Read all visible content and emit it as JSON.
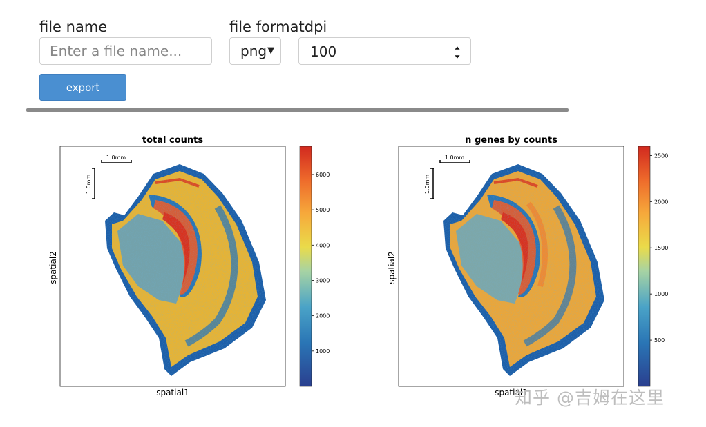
{
  "controls": {
    "file_name_label": "file name",
    "file_name_placeholder": "Enter a file name...",
    "file_format_label": "file format",
    "dpi_label": "dpi",
    "format_value": "png",
    "dpi_value": "100",
    "export_label": "export"
  },
  "watermark": "知乎 @吉姆在这里",
  "chart_data": [
    {
      "type": "heatmap",
      "title": "total counts",
      "xlabel": "spatial1",
      "ylabel": "spatial2",
      "scalebar_h": "1.0mm",
      "scalebar_v": "1.0mm",
      "colorbar": {
        "min": 0,
        "max": 6800,
        "ticks": [
          1000,
          2000,
          3000,
          4000,
          5000,
          6000
        ],
        "colormap": "spectral-reversed"
      }
    },
    {
      "type": "heatmap",
      "title": "n genes by counts",
      "xlabel": "spatial1",
      "ylabel": "spatial2",
      "scalebar_h": "1.0mm",
      "scalebar_v": "1.0mm",
      "colorbar": {
        "min": 0,
        "max": 2600,
        "ticks": [
          500,
          1000,
          1500,
          2000,
          2500
        ],
        "colormap": "spectral-reversed"
      }
    }
  ],
  "colors": {
    "button": "#4a8fd1",
    "divider": "#8a8a8a",
    "tissue_edge": "#1d5fa8",
    "tissue_body": "#e6b335",
    "high": "#d83a22"
  }
}
